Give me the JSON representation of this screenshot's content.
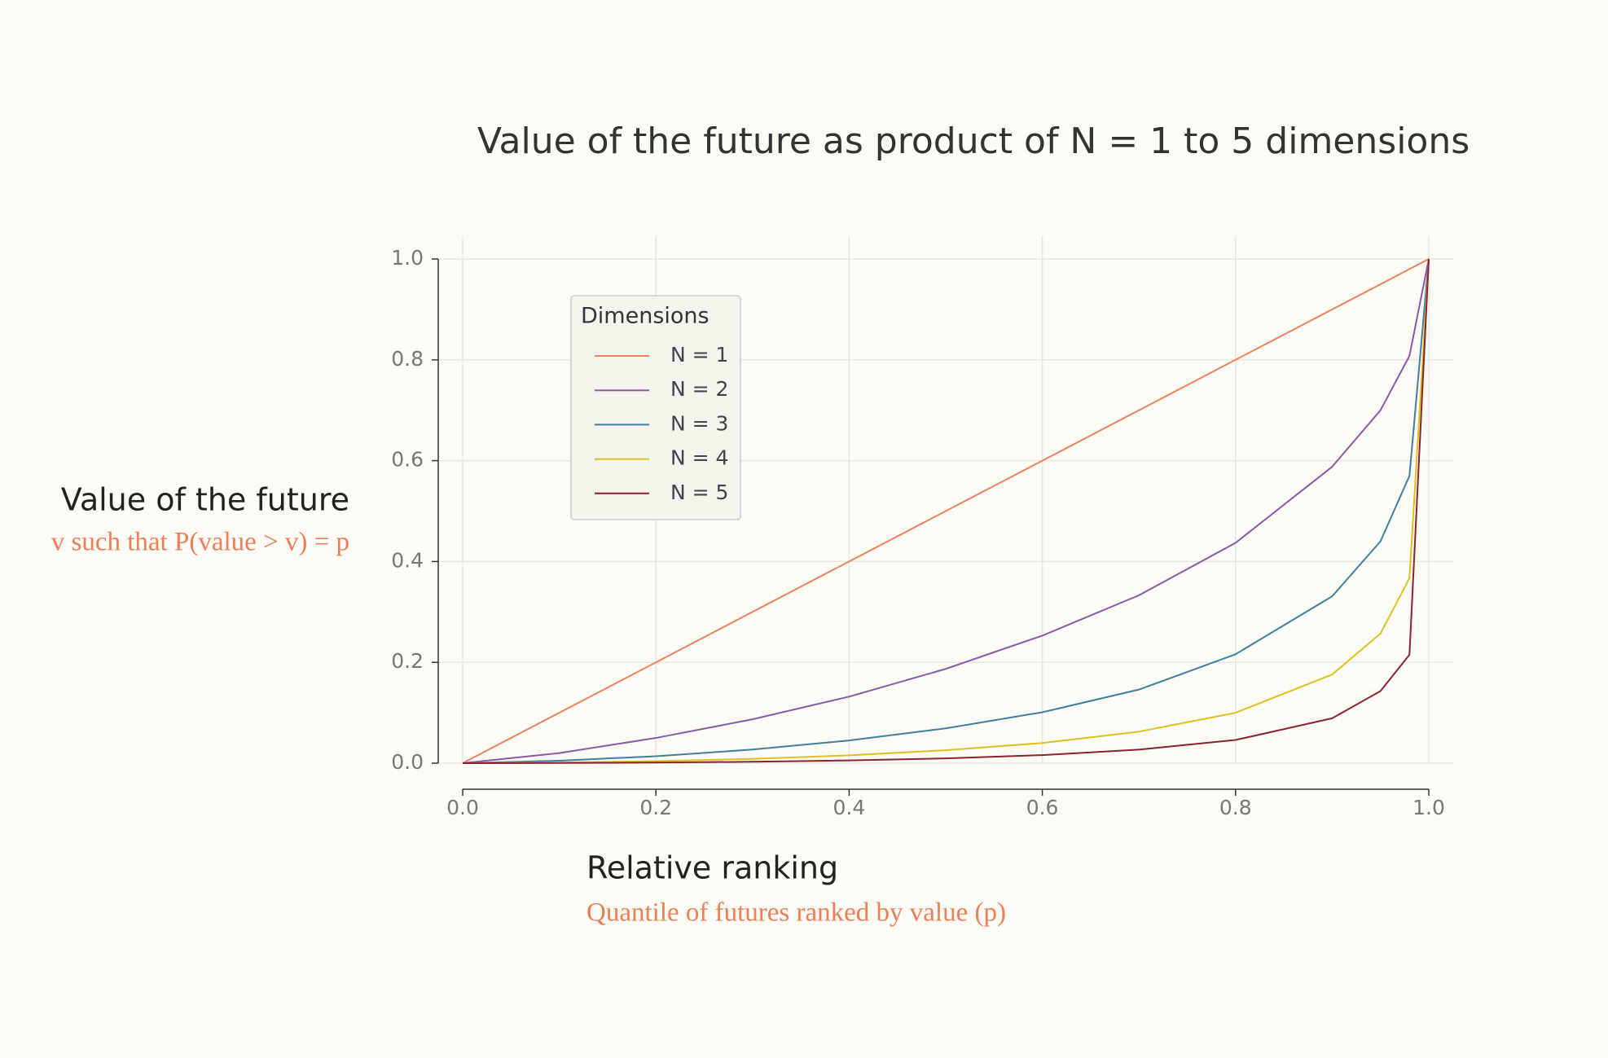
{
  "chart_data": {
    "type": "line",
    "title": "Value of the future as product of N = 1 to 5 dimensions",
    "x_label": "Relative ranking",
    "x_sublabel": "Quantile of futures ranked by value (p)",
    "y_label": "Value of the future",
    "y_sublabel": "v such that P(value > v) = p",
    "legend_title": "Dimensions",
    "grid": true,
    "x": [
      0,
      0.1,
      0.2,
      0.3,
      0.4,
      0.5,
      0.6,
      0.7,
      0.8,
      0.9,
      0.95,
      0.98,
      1.0
    ],
    "series": [
      {
        "name": "N = 1",
        "color": "#f0825a",
        "values": [
          0,
          0.1,
          0.2,
          0.3,
          0.4,
          0.5,
          0.6,
          0.7,
          0.8,
          0.9,
          0.95,
          0.98,
          1.0
        ]
      },
      {
        "name": "N = 2",
        "color": "#8a5aa8",
        "values": [
          0,
          0.02,
          0.05,
          0.087,
          0.132,
          0.187,
          0.253,
          0.333,
          0.437,
          0.588,
          0.7,
          0.808,
          1.0
        ]
      },
      {
        "name": "N = 3",
        "color": "#3f7fa0",
        "values": [
          0,
          0.0049,
          0.0138,
          0.027,
          0.045,
          0.069,
          0.101,
          0.146,
          0.216,
          0.331,
          0.44,
          0.57,
          1.0
        ]
      },
      {
        "name": "N = 4",
        "color": "#e0c020",
        "values": [
          0,
          0.00125,
          0.004,
          0.0085,
          0.0155,
          0.0257,
          0.04,
          0.0625,
          0.1,
          0.176,
          0.257,
          0.367,
          1.0
        ]
      },
      {
        "name": "N = 5",
        "color": "#8b2232",
        "values": [
          0,
          0.00033,
          0.00117,
          0.0028,
          0.0054,
          0.0094,
          0.016,
          0.0268,
          0.046,
          0.089,
          0.143,
          0.215,
          1.0
        ]
      }
    ],
    "xlim": [
      0,
      1
    ],
    "ylim": [
      0,
      1
    ],
    "xticks": [
      {
        "value": 0,
        "label": "0.0"
      },
      {
        "value": 0.2,
        "label": "0.2"
      },
      {
        "value": 0.4,
        "label": "0.4"
      },
      {
        "value": 0.6,
        "label": "0.6"
      },
      {
        "value": 0.8,
        "label": "0.8"
      },
      {
        "value": 1,
        "label": "1.0"
      }
    ],
    "yticks": [
      {
        "value": 0,
        "label": "0.0"
      },
      {
        "value": 0.2,
        "label": "0.2"
      },
      {
        "value": 0.4,
        "label": "0.4"
      },
      {
        "value": 0.6,
        "label": "0.6"
      },
      {
        "value": 0.8,
        "label": "0.8"
      },
      {
        "value": 1,
        "label": "1.0"
      }
    ]
  }
}
